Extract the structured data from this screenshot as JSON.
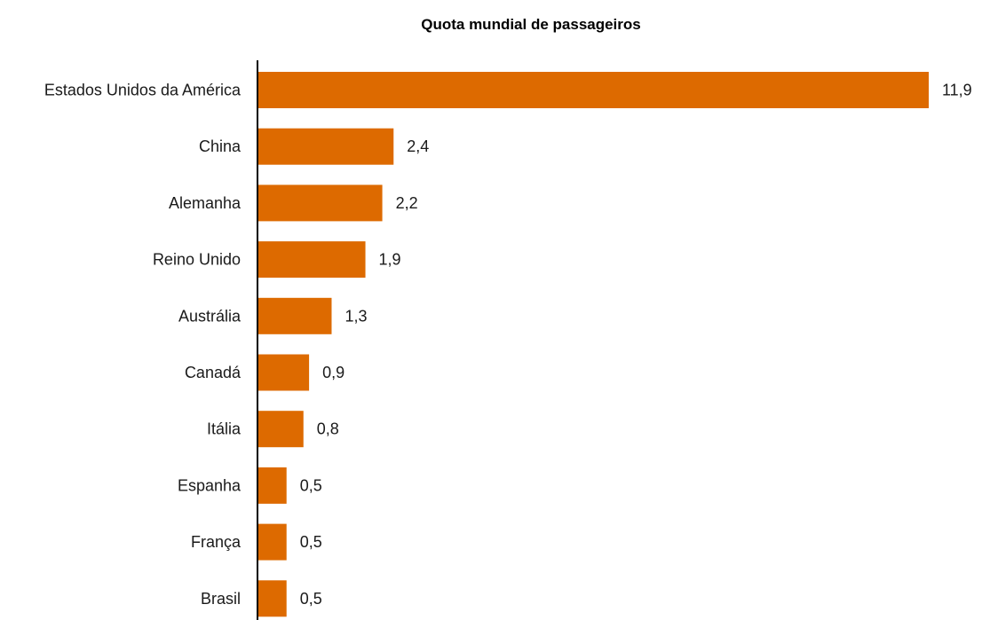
{
  "chart_data": {
    "type": "bar",
    "orientation": "horizontal",
    "title": "Quota mundial de passageiros",
    "xlabel": "",
    "ylabel": "",
    "categories": [
      "Estados Unidos da América",
      "China",
      "Alemanha",
      "Reino Unido",
      "Austrália",
      "Canadá",
      "Itália",
      "Espanha",
      "França",
      "Brasil"
    ],
    "values": [
      11.9,
      2.4,
      2.2,
      1.9,
      1.3,
      0.9,
      0.8,
      0.5,
      0.5,
      0.5
    ],
    "value_labels": [
      "11,9",
      "2,4",
      "2,2",
      "1,9",
      "1,3",
      "0,9",
      "0,8",
      "0,5",
      "0,5",
      "0,5"
    ],
    "xlim": [
      0,
      11.9
    ],
    "grid": false,
    "legend": "none",
    "colors": {
      "bar": "#dd6a00",
      "axis": "#000000",
      "text": "#1a1a1a"
    }
  }
}
